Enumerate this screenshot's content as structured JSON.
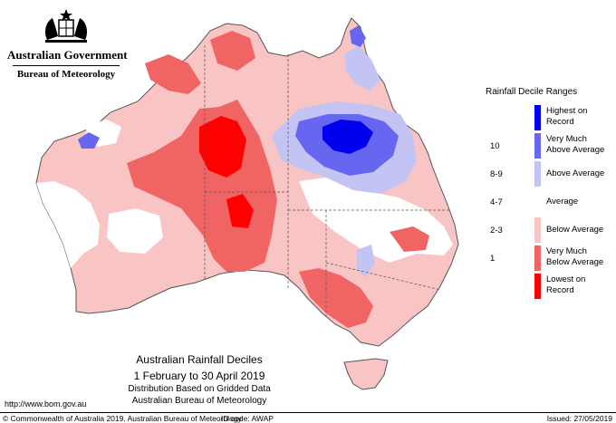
{
  "header": {
    "crest_icon": "coat-of-arms-icon",
    "government": "Australian Government",
    "bureau": "Bureau of Meteorology"
  },
  "legend": {
    "title": "Rainfall Decile Ranges",
    "items": [
      {
        "range": "",
        "label": "Highest on Record",
        "color": "#0000ee"
      },
      {
        "range": "10",
        "label": "Very Much Above Average",
        "color": "#6666f0"
      },
      {
        "range": "8-9",
        "label": "Above Average",
        "color": "#c4c4f4"
      },
      {
        "range": "4-7",
        "label": "Average",
        "color": "#ffffff"
      },
      {
        "range": "2-3",
        "label": "Below Average",
        "color": "#f9c4c4"
      },
      {
        "range": "1",
        "label": "Very Much Below Average",
        "color": "#f06464"
      },
      {
        "range": "",
        "label": "Lowest on Record",
        "color": "#ff0000"
      }
    ]
  },
  "caption": {
    "title": "Australian Rainfall Deciles",
    "dates": "1 February to 30 April 2019",
    "method": "Distribution Based on Gridded Data",
    "source": "Australian Bureau of Meteorology"
  },
  "footer": {
    "url": "http://www.bom.gov.au",
    "copyright": "© Commonwealth of Australia 2019, Australian Bureau of Meteorology",
    "id_code": "ID code: AWAP",
    "issued": "Issued: 27/05/2019"
  }
}
